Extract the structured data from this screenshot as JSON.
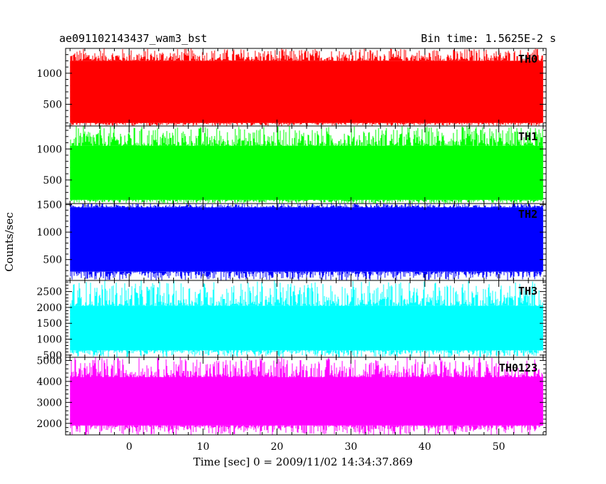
{
  "chart_data": {
    "type": "line",
    "title": "ae091102143437_wam3_bst",
    "subtitle": "Bin time: 1.5625E-2 s",
    "xlabel": "Time [sec] 0 = 2009/11/02 14:34:37.869",
    "ylabel": "Counts/sec",
    "xlim": [
      -8.6,
      56.4
    ],
    "data_x_range": [
      -8,
      56
    ],
    "xticks_major": [
      0,
      10,
      20,
      30,
      40,
      50
    ],
    "grid": false,
    "panels": [
      {
        "name": "TH0",
        "color": "#ff0000",
        "ylim": [
          150,
          1400
        ],
        "yticks": [
          500,
          1000
        ],
        "band": [
          200,
          1200
        ],
        "spike_max": 1400,
        "spike_min": 150
      },
      {
        "name": "TH1",
        "color": "#00ff00",
        "ylim": [
          120,
          1370
        ],
        "yticks": [
          500,
          1000
        ],
        "band": [
          180,
          1050
        ],
        "spike_max": 1370,
        "spike_min": 120
      },
      {
        "name": "TH2",
        "color": "#0000ff",
        "ylim": [
          120,
          1520
        ],
        "yticks": [
          500,
          1000,
          1500
        ],
        "band": [
          280,
          1450
        ],
        "spike_max": 1520,
        "spike_min": 120
      },
      {
        "name": "TH3",
        "color": "#00ffff",
        "ylim": [
          430,
          2850
        ],
        "yticks": [
          500,
          1000,
          1500,
          2000,
          2500
        ],
        "band": [
          650,
          2050
        ],
        "spike_max": 2850,
        "spike_min": 430
      },
      {
        "name": "TH0123",
        "color": "#ff00ff",
        "ylim": [
          1450,
          5150
        ],
        "yticks": [
          2000,
          3000,
          4000,
          5000
        ],
        "band": [
          1900,
          4200
        ],
        "spike_max": 5150,
        "spike_min": 1450
      }
    ]
  }
}
